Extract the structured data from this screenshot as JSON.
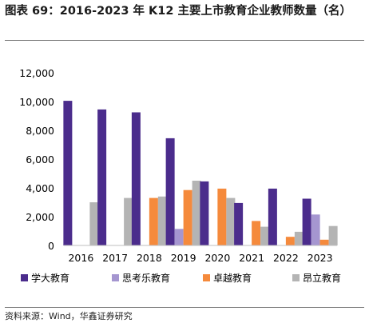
{
  "title": "图表 69：2016-2023 年 K12 主要上市教育企业教师数量（名）",
  "source": "资料来源：Wind，华鑫证券研究",
  "colors": {
    "axis": "#bfbfbf",
    "tick_text": "#000000"
  },
  "chart_data": {
    "type": "bar",
    "categories": [
      "2016",
      "2017",
      "2018",
      "2019",
      "2020",
      "2021",
      "2022",
      "2023"
    ],
    "ylim": [
      0,
      12000
    ],
    "yticks": [
      0,
      2000,
      4000,
      6000,
      8000,
      10000,
      12000
    ],
    "ytick_labels": [
      "0",
      "2,000",
      "4,000",
      "6,000",
      "8,000",
      "10,000",
      "12,000"
    ],
    "grid": false,
    "legend_position": "bottom",
    "series": [
      {
        "name": "学大教育",
        "color": "#4b2c8c",
        "values": [
          10050,
          9450,
          9250,
          7450,
          4450,
          2950,
          3950,
          3250
        ]
      },
      {
        "name": "思考乐教育",
        "color": "#a596d0",
        "values": [
          null,
          null,
          null,
          1150,
          null,
          null,
          null,
          2150
        ]
      },
      {
        "name": "卓越教育",
        "color": "#f58a3c",
        "values": [
          null,
          null,
          3300,
          3850,
          3950,
          1700,
          600,
          400
        ]
      },
      {
        "name": "昂立教育",
        "color": "#b4b4b4",
        "values": [
          3000,
          3300,
          3400,
          4500,
          3300,
          1300,
          950,
          1350
        ]
      }
    ]
  }
}
